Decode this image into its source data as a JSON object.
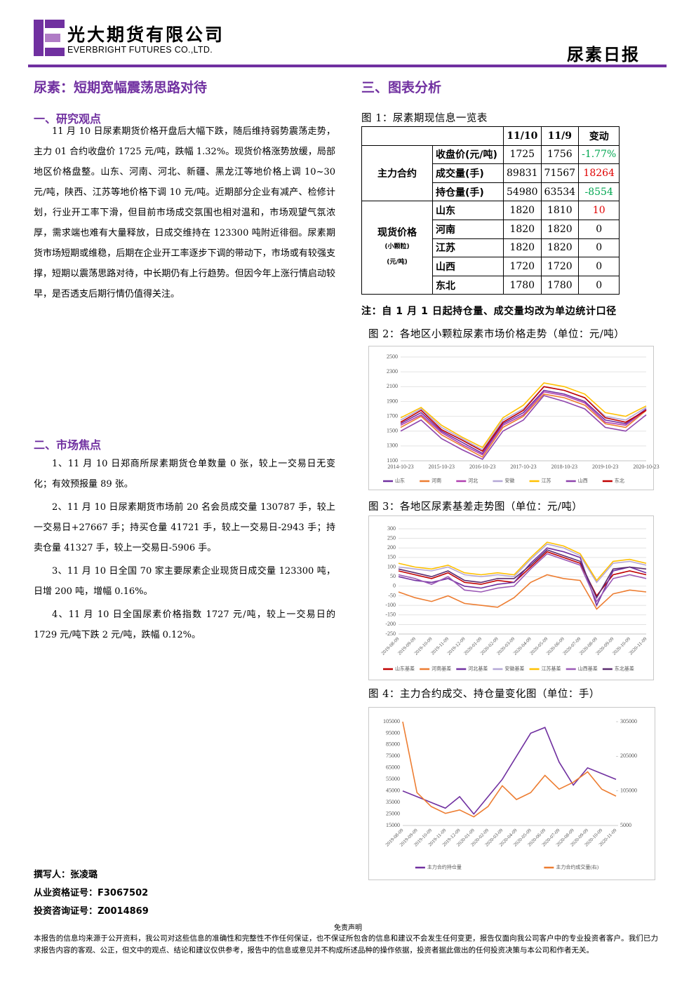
{
  "header": {
    "company_cn": "光大期货有限公司",
    "company_en": "EVERBRIGHT FUTURES CO.,LTD.",
    "report_name": "尿素日报"
  },
  "left": {
    "title": "尿素：短期宽幅震荡思路对待",
    "section1": {
      "heading": "一、研究观点",
      "body": "11 月 10 日尿素期货价格开盘后大幅下跌，随后维持弱势震荡走势，主力 01 合约收盘价 1725 元/吨，跌幅 1.32%。现货价格涨势放缓，局部地区价格盘整。山东、河南、河北、新疆、黑龙江等地价格上调 10~30 元/吨，陕西、江苏等地价格下调 10 元/吨。近期部分企业有减产、检修计划，行业开工率下滑，但目前市场成交氛围也相对温和，市场观望气氛浓厚，需求端也难有大量释放，日成交维持在 123300 吨附近徘徊。尿素期货市场短期或维稳，后期在企业开工率逐步下调的带动下，市场或有较强支撑，短期以震荡思路对待，中长期仍有上行趋势。但因今年上涨行情启动较早，是否透支后期行情仍值得关注。"
    },
    "section2": {
      "heading": "二、市场焦点",
      "items": [
        "1、11 月 10 日郑商所尿素期货仓单数量 0 张，较上一交易日无变化；有效预报量 89 张。",
        "2、11 月 10 日尿素期货市场前 20 名会员成交量 130787 手，较上一交易日+27667 手；持买仓量 41721 手，较上一交易日-2943 手；持卖仓量 41327 手，较上一交易日-5906 手。",
        "3、11 月 10 日全国 70 家主要尿素企业现货日成交量 123300 吨，日增 200 吨，增幅 0.16%。",
        "4、11 月 10 日全国尿素价格指数 1727 元/吨，较上一交易日的 1729 元/吨下跌 2 元/吨，跌幅 0.12%。"
      ]
    },
    "author": [
      "撰写人：张凌璐",
      "从业资格证号：F3067502",
      "投资咨询证号：Z0014869"
    ]
  },
  "right": {
    "heading": "三、图表分析",
    "table": {
      "caption": "图 1：尿素期现信息一览表",
      "columns": [
        "11/10",
        "11/9",
        "变动"
      ],
      "groups": [
        {
          "label": [
            "主力合约"
          ],
          "rows": [
            {
              "name": "收盘价(元/吨)",
              "values": [
                1725,
                1756,
                "-1.77%"
              ]
            },
            {
              "name": "成交量(手)",
              "values": [
                89831,
                71567,
                18264
              ]
            },
            {
              "name": "持仓量(手)",
              "values": [
                54980,
                63534,
                -8554
              ]
            }
          ]
        },
        {
          "label": [
            "现货价格",
            "(小颗粒)",
            "(元/吨)"
          ],
          "rows": [
            {
              "name": "山东",
              "values": [
                1820,
                1810,
                10
              ]
            },
            {
              "name": "河南",
              "values": [
                1820,
                1820,
                0
              ]
            },
            {
              "name": "江苏",
              "values": [
                1820,
                1820,
                0
              ]
            },
            {
              "name": "山西",
              "values": [
                1720,
                1720,
                0
              ]
            },
            {
              "name": "东北",
              "values": [
                1780,
                1780,
                0
              ]
            }
          ]
        }
      ],
      "note": "注：自 1 月 1 日起持仓量、成交量均改为单边统计口径"
    }
  },
  "chart_data": [
    {
      "type": "line",
      "title": "图 2：各地区小颗粒尿素市场价格走势（单位：元/吨）",
      "categories": [
        "2014-10-23",
        null,
        "2015-10-23",
        null,
        "2016-10-23",
        null,
        "2017-10-23",
        null,
        "2018-10-23",
        null,
        "2019-10-23",
        null,
        "2020-10-23"
      ],
      "ylim": [
        1100,
        2500
      ],
      "yticks": [
        1100,
        1300,
        1500,
        1700,
        1900,
        2100,
        2300,
        2500
      ],
      "grid": true,
      "series": [
        {
          "name": "山东",
          "color": "#7030a0",
          "values": [
            1600,
            1750,
            1500,
            1350,
            1200,
            1600,
            1750,
            2050,
            2000,
            1900,
            1650,
            1600,
            1800
          ]
        },
        {
          "name": "河南",
          "color": "#ed7d31",
          "values": [
            1550,
            1700,
            1450,
            1300,
            1150,
            1550,
            1700,
            2000,
            1950,
            1850,
            1600,
            1550,
            1780
          ]
        },
        {
          "name": "河北",
          "color": "#b03fb0",
          "values": [
            1580,
            1720,
            1480,
            1320,
            1180,
            1580,
            1720,
            2030,
            1980,
            1880,
            1620,
            1580,
            1790
          ]
        },
        {
          "name": "安徽",
          "color": "#b4a7d6",
          "values": [
            1650,
            1800,
            1550,
            1400,
            1250,
            1650,
            1800,
            2100,
            2050,
            1950,
            1700,
            1650,
            1820
          ]
        },
        {
          "name": "江苏",
          "color": "#ffc000",
          "values": [
            1680,
            1820,
            1580,
            1420,
            1280,
            1680,
            1850,
            2150,
            2100,
            2000,
            1750,
            1700,
            1840
          ]
        },
        {
          "name": "山西",
          "color": "#8e44ad",
          "values": [
            1500,
            1650,
            1400,
            1250,
            1120,
            1500,
            1650,
            1980,
            1900,
            1800,
            1550,
            1500,
            1720
          ]
        },
        {
          "name": "东北",
          "color": "#c00000",
          "values": [
            1620,
            1780,
            1520,
            1380,
            1230,
            1620,
            1780,
            2100,
            2050,
            1950,
            1680,
            1620,
            1780
          ]
        }
      ]
    },
    {
      "type": "line",
      "title": "图 3：各地区尿素基差走势图（单位：元/吨）",
      "categories": [
        "2019-08-09",
        "2019-09-09",
        "2019-10-09",
        "2019-11-09",
        "2019-12-09",
        "2020-01-09",
        "2020-02-09",
        "2020-03-09",
        "2020-04-09",
        "2020-05-09",
        "2020-06-09",
        "2020-07-09",
        "2020-08-09",
        "2020-09-09",
        "2020-10-09",
        "2020-11-09"
      ],
      "ylim": [
        -250,
        300
      ],
      "yticks": [
        -250,
        -200,
        -150,
        -100,
        -50,
        0,
        50,
        100,
        150,
        200,
        250,
        300
      ],
      "grid": true,
      "series": [
        {
          "name": "山东基差",
          "color": "#c00000",
          "values": [
            80,
            60,
            40,
            70,
            20,
            10,
            30,
            20,
            100,
            180,
            150,
            120,
            -50,
            60,
            80,
            60
          ]
        },
        {
          "name": "河南基差",
          "color": "#ed7d31",
          "values": [
            -30,
            -60,
            -80,
            -50,
            -90,
            -100,
            -110,
            -60,
            20,
            60,
            40,
            30,
            -120,
            -40,
            -20,
            -30
          ]
        },
        {
          "name": "河北基差",
          "color": "#7030a0",
          "values": [
            50,
            30,
            20,
            40,
            0,
            -10,
            10,
            20,
            120,
            200,
            180,
            150,
            -100,
            80,
            100,
            70
          ]
        },
        {
          "name": "安徽基差",
          "color": "#b4a7d6",
          "values": [
            100,
            90,
            80,
            100,
            60,
            50,
            60,
            50,
            140,
            220,
            200,
            160,
            20,
            120,
            130,
            110
          ]
        },
        {
          "name": "江苏基差",
          "color": "#ffc000",
          "values": [
            120,
            100,
            90,
            110,
            70,
            60,
            70,
            60,
            150,
            230,
            210,
            170,
            30,
            130,
            140,
            120
          ]
        },
        {
          "name": "山西基差",
          "color": "#9b59b6",
          "values": [
            60,
            40,
            10,
            50,
            -20,
            -30,
            -10,
            0,
            90,
            170,
            140,
            110,
            -80,
            40,
            60,
            40
          ]
        },
        {
          "name": "东北基差",
          "color": "#5b2c6f",
          "values": [
            90,
            70,
            50,
            80,
            30,
            20,
            40,
            40,
            110,
            190,
            160,
            130,
            -60,
            90,
            100,
            90
          ]
        }
      ]
    },
    {
      "type": "line",
      "title": "图 4：主力合约成交、持仓量变化图（单位：手）",
      "categories": [
        "2019-08-09",
        "2019-09-09",
        "2019-10-09",
        "2019-11-09",
        "2019-12-09",
        "2020-01-09",
        "2020-02-09",
        "2020-03-09",
        "2020-04-09",
        "2020-05-09",
        "2020-06-09",
        "2020-07-09",
        "2020-08-09",
        "2020-09-09",
        "2020-10-09",
        "2020-11-09"
      ],
      "ylim": [
        15000,
        105000
      ],
      "yticks": [
        15000,
        25000,
        35000,
        45000,
        55000,
        65000,
        75000,
        85000,
        95000,
        105000
      ],
      "y2lim": [
        5000,
        305000
      ],
      "y2ticks": [
        5000,
        105000,
        205000,
        305000
      ],
      "grid": false,
      "series": [
        {
          "name": "主力合约持仓量",
          "color": "#7030a0",
          "values": [
            45000,
            40000,
            35000,
            30000,
            40000,
            25000,
            40000,
            55000,
            75000,
            95000,
            100000,
            70000,
            50000,
            65000,
            60000,
            55000
          ]
        },
        {
          "name": "主力合约成交量(右)",
          "color": "#ed7d31",
          "axis": "y2",
          "values": [
            305000,
            100000,
            60000,
            40000,
            50000,
            30000,
            60000,
            120000,
            80000,
            100000,
            150000,
            110000,
            130000,
            160000,
            110000,
            90000
          ]
        }
      ]
    }
  ],
  "disclaimer": {
    "title": "免责声明",
    "body": "本报告的信息均来源于公开资料，我公司对这些信息的准确性和完整性不作任何保证，也不保证所包含的信息和建议不会发生任何变更，报告仅面向我公司客户中的专业投资者客户。我们已力求报告内容的客观、公正，但文中的观点、结论和建议仅供参考，报告中的信息或意见并不构成所述品种的操作依据，投资者据此做出的任何投资决策与本公司和作者无关。"
  }
}
